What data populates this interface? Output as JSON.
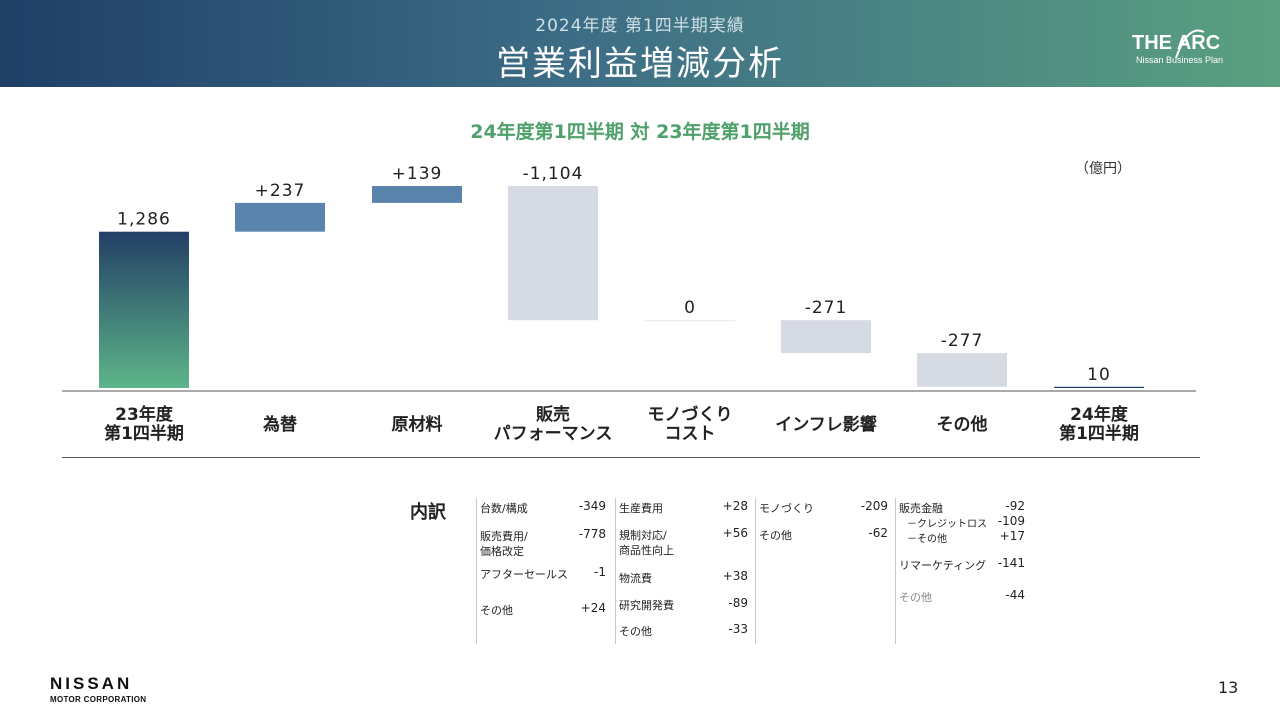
{
  "header": {
    "subtitle": "2024年度 第1四半期実績",
    "title": "営業利益増減分析",
    "logo_main": "THE ARC",
    "logo_sub": "Nissan Business Plan"
  },
  "comparison": "24年度第1四半期 対 23年度第1四半期",
  "unit": "（億円）",
  "chart_data": {
    "type": "bar",
    "subtype": "waterfall",
    "categories": [
      "23年度 第1四半期",
      "為替",
      "原材料",
      "販売 パフォーマンス",
      "モノづくり コスト",
      "インフレ影響",
      "その他",
      "24年度 第1四半期"
    ],
    "values": [
      1286,
      237,
      139,
      -1104,
      0,
      -271,
      -277,
      10
    ],
    "value_labels": [
      "1,286",
      "+237",
      "+139",
      "-1,104",
      "0",
      "-271",
      "-277",
      "10"
    ],
    "kinds": [
      "total",
      "delta",
      "delta",
      "delta",
      "delta",
      "delta",
      "delta",
      "total"
    ],
    "colors": {
      "total_top": "#233f66",
      "total_bottom": "#5db589",
      "increase": "#5b84ad",
      "decrease": "#d6dae3",
      "final": "#1f3f66"
    },
    "ylim": [
      0,
      1662
    ],
    "grid": false,
    "legend": "none"
  },
  "categories_display": [
    [
      "23年度",
      "第1四半期"
    ],
    [
      "為替"
    ],
    [
      "原材料"
    ],
    [
      "販売",
      "パフォーマンス"
    ],
    [
      "モノづくり",
      "コスト"
    ],
    [
      "インフレ影響"
    ],
    [
      "その他"
    ],
    [
      "24年度",
      "第1四半期"
    ]
  ],
  "breakdown": {
    "title": "内訳",
    "col1": [
      {
        "label": "台数/構成",
        "value": "-349"
      },
      {
        "label": "販売費用/",
        "label2": "価格改定",
        "value": "-778"
      },
      {
        "label": "アフターセールス",
        "value": "-1"
      },
      {
        "label": "その他",
        "value": "+24"
      }
    ],
    "col2": [
      {
        "label": "生産費用",
        "value": "+28"
      },
      {
        "label": "規制対応/",
        "label2": "商品性向上",
        "value": "+56"
      },
      {
        "label": "物流費",
        "value": "+38"
      },
      {
        "label": "研究開発費",
        "value": "-89"
      },
      {
        "label": "その他",
        "value": "-33"
      }
    ],
    "col3": [
      {
        "label": "モノづくり",
        "value": "-209"
      },
      {
        "label": "その他",
        "value": "-62"
      }
    ],
    "col4": [
      {
        "label": "販売金融",
        "value": "-92"
      },
      {
        "label": "－クレジットロス",
        "value": "-109"
      },
      {
        "label": "－その他",
        "value": "+17"
      },
      {
        "label": "リマーケティング",
        "value": "-141"
      },
      {
        "label": "その他",
        "value": "-44"
      }
    ]
  },
  "footer": {
    "brand": "NISSAN",
    "brand_sub": "MOTOR CORPORATION",
    "page": "13"
  }
}
